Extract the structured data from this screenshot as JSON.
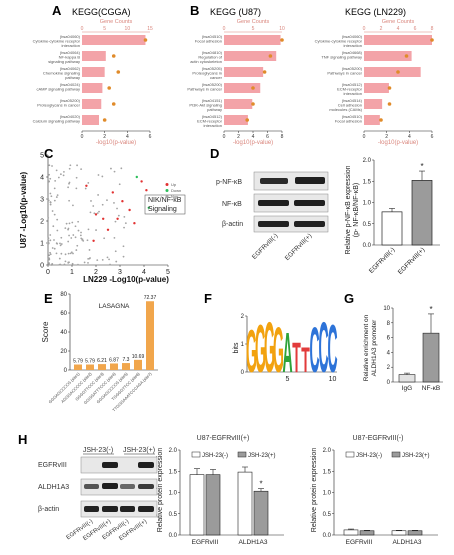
{
  "colors": {
    "kegg_bar": "#f3a3a8",
    "gene_count_axis": "#d9857c",
    "gene_dot": "#e08b2a",
    "scatter_up": "#e23232",
    "scatter_down": "#2bbf5a",
    "scatter_non": "#a3a3a3",
    "lasagna_bar": "#f1a64c",
    "bar_white": "#ffffff",
    "bar_gray": "#9b9b9b",
    "blot_band": "#1f1f1f",
    "blot_bg": "#e8e8e8"
  },
  "panels": {
    "A": {
      "label": "A",
      "title": "KEGG(CGGA)",
      "top_axis_title": "Gene Counts",
      "top_ticks": [
        "0",
        "5",
        "10",
        "15"
      ],
      "bottom_axis_title": "-log10(p-value)",
      "bottom_ticks": [
        "0",
        "2",
        "4",
        "6"
      ]
    },
    "B1": {
      "label": "B",
      "title": "KEGG (U87)",
      "top_axis_title": "Gene Counts",
      "top_ticks": [
        "0",
        "5",
        "10"
      ],
      "bottom_axis_title": "-log10(p-value)",
      "bottom_ticks": [
        "0",
        "2",
        "4",
        "6",
        "8"
      ]
    },
    "B2": {
      "title": "KEGG (LN229)",
      "top_axis_title": "Gene Counts",
      "top_ticks": [
        "0",
        "2",
        "4",
        "6",
        "8"
      ],
      "bottom_axis_title": "-log10(p-value)",
      "bottom_ticks": [
        "0",
        "2",
        "4",
        "6"
      ]
    },
    "C": {
      "label": "C",
      "ylabel": "U87 -Log10(p-value)",
      "xlabel": "LN229 -Log10(p-value)",
      "yticks": [
        "0",
        "1",
        "2",
        "3",
        "4",
        "5"
      ],
      "xticks": [
        "0",
        "1",
        "2",
        "3",
        "4",
        "5"
      ],
      "legend": [
        "Up",
        "Down",
        "Non"
      ],
      "annotation_line1": "NIK/NF-κB",
      "annotation_line2": "Signaling"
    },
    "D": {
      "label": "D",
      "blot_labels": [
        "p-NF-κB",
        "NF-κB",
        "β-actin"
      ],
      "lanes": [
        "EGFRvIII(-)",
        "EGFRvIII(+)"
      ],
      "ylabel_line1": "Relative p-NF-κB expression",
      "ylabel_line2": "(p- NF-κB/NF-κB)",
      "yticks": [
        "0.0",
        "0.5",
        "1.0",
        "1.5",
        "2.0"
      ],
      "star": "*"
    },
    "E": {
      "label": "E",
      "title": "LASAGNA",
      "ylabel": "Score",
      "yticks": [
        "0",
        "20",
        "40",
        "60",
        "80"
      ]
    },
    "F": {
      "label": "F",
      "ylabel": "bits",
      "xticks": [
        "5",
        "10"
      ],
      "yticks": [
        "0",
        "1",
        "2"
      ],
      "motif": "GGGGATTCCC"
    },
    "G": {
      "label": "G",
      "ylabel_line1": "Relative enrichment on",
      "ylabel_line2": "ALDH1A3 promoter",
      "yticks": [
        "0",
        "2",
        "4",
        "6",
        "8",
        "10"
      ],
      "categories": [
        "IgG",
        "NF-κB"
      ],
      "star": "*"
    },
    "H": {
      "label": "H",
      "blot_header_left": "JSH-23(-)",
      "blot_header_right": "JSH-23(+)",
      "blot_labels": [
        "EGFRvIII",
        "ALDH1A3",
        "β-actin"
      ],
      "lanes": [
        "EGFRvIII(-)",
        "EGFRvIII(+)",
        "EGFRvIII(-)",
        "EGFRvIII(+)"
      ],
      "chart1_title": "U87-EGFRvIII(+)",
      "chart2_title": "U87-EGFRvIII(-)",
      "ylabel": "Relative protein expression",
      "yticks": [
        "0.0",
        "0.5",
        "1.0",
        "1.5",
        "2.0"
      ],
      "legend": [
        "JSH-23(-)",
        "JSH-23(+)"
      ],
      "star": "*"
    }
  },
  "chart_data": [
    {
      "panel": "A",
      "type": "bar",
      "title": "KEGG(CGGA)",
      "categories": [
        "(hsa04060) Cytokine-cytokine receptor interaction",
        "(hsa04064) NF-kappa B signaling pathway",
        "(hsa04062) Chemokine signaling pathway",
        "(hsa04024) cAMP signaling pathway",
        "(hsa05200) Proteoglycans in cancer",
        "(hsa04020) Calcium signaling pathway"
      ],
      "series": [
        {
          "name": "-log10(p-value)",
          "values": [
            5.6,
            2.1,
            2.0,
            1.8,
            1.7,
            1.5
          ]
        },
        {
          "name": "Gene Counts",
          "values": [
            14,
            7,
            8,
            6,
            7,
            5
          ]
        }
      ],
      "xlim_bar": [
        0,
        6
      ],
      "xlim_count": [
        0,
        15
      ]
    },
    {
      "panel": "B",
      "type": "bar",
      "title": "KEGG (U87)",
      "categories": [
        "(hsa04510) Focal adhesion",
        "(hsa04810) Regulation of actin cytoskeleton",
        "(hsa05205) Proteoglycans in cancer",
        "(hsa05200) Pathways in cancer",
        "(hsa04151) PI3K-Akt signaling pathway",
        "(hsa04512) ECM-receptor interaction"
      ],
      "series": [
        {
          "name": "-log10(p-value)",
          "values": [
            7.8,
            7.2,
            5.4,
            5.0,
            3.9,
            3.3
          ]
        },
        {
          "name": "Gene Counts",
          "values": [
            10,
            8,
            7,
            5,
            5,
            4
          ]
        }
      ],
      "xlim_bar": [
        0,
        8
      ],
      "xlim_count": [
        0,
        10
      ]
    },
    {
      "panel": "B",
      "type": "bar",
      "title": "KEGG (LN229)",
      "categories": [
        "(hsa04060) Cytokine-cytokine receptor interaction",
        "(hsa04668) TNF signaling pathway",
        "(hsa05200) Pathways in cancer",
        "(hsa04512) ECM-receptor interaction",
        "(hsa04514) Cell adhesion molecules (CAMs)",
        "(hsa04510) Focal adhesion"
      ],
      "series": [
        {
          "name": "-log10(p-value)",
          "values": [
            6.0,
            4.2,
            5.0,
            2.2,
            1.6,
            1.4
          ]
        },
        {
          "name": "Gene Counts",
          "values": [
            8,
            5,
            4,
            3,
            3,
            2
          ]
        }
      ],
      "xlim_bar": [
        0,
        6
      ],
      "xlim_count": [
        0,
        8
      ]
    },
    {
      "panel": "C",
      "type": "scatter",
      "xlabel": "LN229 -Log10(p-value)",
      "ylabel": "U87 -Log10(p-value)",
      "xlim": [
        0,
        5
      ],
      "ylim": [
        0,
        5
      ],
      "series": [
        {
          "name": "Up",
          "points": [
            [
              2.0,
              2.3
            ],
            [
              2.3,
              2.1
            ],
            [
              3.1,
              2.9
            ],
            [
              2.7,
              3.3
            ],
            [
              3.9,
              3.8
            ],
            [
              3.4,
              2.5
            ],
            [
              2.5,
              1.6
            ],
            [
              4.1,
              3.4
            ],
            [
              2.9,
              2.1
            ],
            [
              3.6,
              1.9
            ],
            [
              1.6,
              3.6
            ],
            [
              1.9,
              1.1
            ]
          ]
        },
        {
          "name": "Down",
          "points": [
            [
              3.7,
              4.0
            ],
            [
              4.2,
              2.6
            ]
          ]
        },
        {
          "name": "Non",
          "points": []
        }
      ]
    },
    {
      "panel": "D",
      "type": "bar",
      "categories": [
        "EGFRvIII(-)",
        "EGFRvIII(+)"
      ],
      "values": [
        0.78,
        1.52
      ],
      "errors": [
        0.08,
        0.22
      ],
      "ylim": [
        0,
        2
      ]
    },
    {
      "panel": "E",
      "type": "bar",
      "title": "LASAGNA",
      "ylabel": "Score",
      "ylim": [
        0,
        80
      ],
      "categories": [
        "GGGAGCCCCG (site1)",
        "AGGGACCCCC (site2)",
        "GGGGTTCCC (site3)",
        "GGGGATTTCCC (site4)",
        "GGGAGCCCCG (site5)",
        "TGGGGTTCC (site6)",
        "TTGGGAAATCCCAGA (site7)"
      ],
      "values": [
        5.79,
        5.79,
        6.21,
        6.87,
        7.3,
        10.69,
        72.37
      ]
    },
    {
      "panel": "G",
      "type": "bar",
      "categories": [
        "IgG",
        "NF-κB"
      ],
      "values": [
        1.0,
        6.6
      ],
      "errors": [
        0.2,
        2.6
      ],
      "ylim": [
        0,
        10
      ]
    },
    {
      "panel": "H",
      "type": "bar",
      "title": "U87-EGFRvIII(+)",
      "categories": [
        "EGFRvIII",
        "ALDH1A3"
      ],
      "series": [
        {
          "name": "JSH-23(-)",
          "values": [
            1.42,
            1.48
          ],
          "errors": [
            0.14,
            0.12
          ]
        },
        {
          "name": "JSH-23(+)",
          "values": [
            1.42,
            1.03
          ],
          "errors": [
            0.12,
            0.06
          ]
        }
      ],
      "ylim": [
        0,
        2
      ]
    },
    {
      "panel": "H",
      "type": "bar",
      "title": "U87-EGFRvIII(-)",
      "categories": [
        "EGFRvIII",
        "ALDH1A3"
      ],
      "series": [
        {
          "name": "JSH-23(-)",
          "values": [
            0.12,
            0.1
          ],
          "errors": [
            0.02,
            0.01
          ]
        },
        {
          "name": "JSH-23(+)",
          "values": [
            0.1,
            0.1
          ],
          "errors": [
            0.01,
            0.01
          ]
        }
      ],
      "ylim": [
        0,
        2
      ]
    }
  ]
}
